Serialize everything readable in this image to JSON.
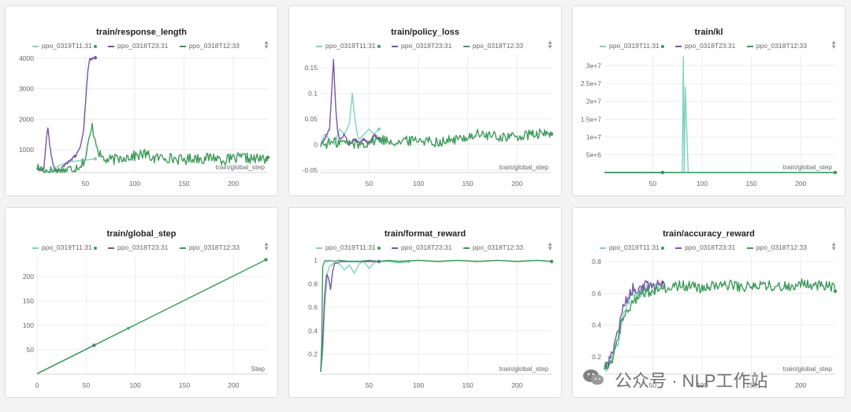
{
  "colors": {
    "run1": "#7fd3bd",
    "run2": "#7a55a6",
    "run3": "#3e9a5a"
  },
  "legend": [
    {
      "name": "ppo_0319T11:31",
      "color": "#7fd3bd"
    },
    {
      "name": "ppo_0318T23:31",
      "color": "#7a55a6"
    },
    {
      "name": "ppo_0318T12:33",
      "color": "#3e9a5a"
    }
  ],
  "sort_icon": "sort-arrows-icon",
  "watermark": {
    "icon": "wechat-icon",
    "text": "公众号 · NLP工作站"
  },
  "chart_data": [
    {
      "type": "line",
      "title": "train/response_length",
      "xlabel": "train/global_step",
      "xlim": [
        1,
        235
      ],
      "ylim": [
        250,
        4100
      ],
      "xticks": [
        50,
        100,
        150,
        200
      ],
      "yticks": [
        1000,
        2000,
        3000,
        4000
      ],
      "yticklabels": [
        "1000",
        "2000",
        "3000",
        "4000"
      ],
      "series": [
        {
          "name": "ppo_0319T11:31",
          "style": "flat",
          "x": [
            1,
            5,
            10,
            15,
            20,
            25,
            30,
            35,
            40,
            45,
            50,
            55,
            60
          ],
          "y": [
            420,
            350,
            260,
            300,
            420,
            500,
            560,
            600,
            620,
            650,
            660,
            680,
            700
          ]
        },
        {
          "name": "ppo_0318T23:31",
          "style": "spiky",
          "x": [
            1,
            5,
            8,
            10,
            12,
            14,
            17,
            20,
            25,
            30,
            35,
            40,
            45,
            48,
            50,
            52,
            54,
            57,
            60
          ],
          "y": [
            380,
            330,
            360,
            1200,
            1750,
            1100,
            550,
            300,
            350,
            520,
            640,
            800,
            1100,
            1600,
            2500,
            3400,
            3950,
            4000,
            4030
          ]
        },
        {
          "name": "ppo_0318T12:33",
          "style": "noisy",
          "x": [
            1,
            10,
            20,
            30,
            40,
            45,
            50,
            55,
            57,
            60,
            65,
            70,
            80,
            90,
            100,
            110,
            120,
            130,
            140,
            150,
            160,
            170,
            180,
            190,
            200,
            210,
            220,
            230,
            235
          ],
          "y": [
            420,
            320,
            300,
            330,
            420,
            500,
            700,
            1500,
            1750,
            1350,
            800,
            650,
            680,
            760,
            790,
            860,
            710,
            760,
            700,
            660,
            740,
            700,
            760,
            660,
            700,
            740,
            690,
            700,
            710
          ]
        }
      ]
    },
    {
      "type": "line",
      "title": "train/policy_loss",
      "xlabel": "train/global_step",
      "xlim": [
        1,
        235
      ],
      "ylim": [
        -0.055,
        0.175
      ],
      "xticks": [
        50,
        100,
        150,
        200
      ],
      "yticks": [
        -0.05,
        0,
        0.05,
        0.1,
        0.15
      ],
      "yticklabels": [
        "-0.05",
        "0",
        "0.05",
        "0.1",
        "0.15"
      ],
      "series": [
        {
          "name": "ppo_0319T11:31",
          "style": "flat",
          "x": [
            1,
            5,
            10,
            15,
            20,
            25,
            30,
            33,
            35,
            38,
            40,
            45,
            50,
            55,
            60
          ],
          "y": [
            0.0,
            0.02,
            0.01,
            0.0,
            0.03,
            0.02,
            0.04,
            0.1,
            0.06,
            0.02,
            0.01,
            0.02,
            0.03,
            0.02,
            0.03
          ]
        },
        {
          "name": "ppo_0318T23:31",
          "style": "spiky",
          "x": [
            1,
            5,
            10,
            12,
            14,
            16,
            18,
            20,
            25,
            30,
            35,
            40,
            45,
            50,
            55,
            60
          ],
          "y": [
            0.0,
            0.01,
            0.03,
            0.1,
            0.165,
            0.08,
            0.03,
            0.01,
            0.02,
            0.0,
            0.01,
            0.005,
            0.01,
            0.0,
            0.02,
            0.01
          ]
        },
        {
          "name": "ppo_0318T12:33",
          "style": "noisy",
          "x": [
            1,
            20,
            40,
            60,
            80,
            100,
            120,
            140,
            160,
            180,
            200,
            220,
            235
          ],
          "y": [
            0.0,
            0.005,
            0.0,
            0.01,
            0.005,
            0.01,
            0.005,
            0.01,
            0.02,
            0.015,
            0.015,
            0.02,
            0.02
          ]
        }
      ]
    },
    {
      "type": "line",
      "title": "train/kl",
      "xlabel": "train/global_step",
      "xlim": [
        1,
        235
      ],
      "ylim": [
        0,
        33000000
      ],
      "xticks": [
        50,
        100,
        150,
        200
      ],
      "yticks": [
        5000000,
        10000000,
        15000000,
        20000000,
        25000000,
        30000000
      ],
      "yticklabels": [
        "5e+6",
        "1e+7",
        "1.5e+7",
        "2e+7",
        "2.5e+7",
        "3e+7"
      ],
      "series": [
        {
          "name": "ppo_0319T11:31",
          "style": "flat",
          "x": [
            1,
            76,
            80,
            81,
            82,
            83,
            86,
            235
          ],
          "y": [
            0,
            0,
            0,
            32500000,
            0,
            24000000,
            0,
            0
          ]
        },
        {
          "name": "ppo_0318T23:31",
          "style": "flat",
          "x": [
            1,
            60
          ],
          "y": [
            0,
            0
          ]
        },
        {
          "name": "ppo_0318T12:33",
          "style": "flat",
          "x": [
            1,
            235
          ],
          "y": [
            0,
            0
          ]
        }
      ]
    },
    {
      "type": "line",
      "title": "train/global_step",
      "xlabel": "Step",
      "xlim": [
        0,
        235
      ],
      "ylim": [
        0,
        240
      ],
      "xticks": [
        0,
        50,
        100,
        150,
        200
      ],
      "yticks": [
        50,
        100,
        150,
        200
      ],
      "yticklabels": [
        "50",
        "100",
        "150",
        "200"
      ],
      "series": [
        {
          "name": "ppo_0319T11:31",
          "style": "flat",
          "x": [
            0,
            93
          ],
          "y": [
            1,
            94
          ]
        },
        {
          "name": "ppo_0318T23:31",
          "style": "flat",
          "x": [
            0,
            58
          ],
          "y": [
            1,
            59
          ]
        },
        {
          "name": "ppo_0318T12:33",
          "style": "flat",
          "x": [
            0,
            233
          ],
          "y": [
            1,
            234
          ]
        }
      ]
    },
    {
      "type": "line",
      "title": "train/format_reward",
      "xlabel": "train/global_step",
      "xlim": [
        1,
        235
      ],
      "ylim": [
        0.03,
        1.03
      ],
      "xticks": [
        50,
        100,
        150,
        200
      ],
      "yticks": [
        0.2,
        0.4,
        0.6,
        0.8,
        1
      ],
      "yticklabels": [
        "0.2",
        "0.4",
        "0.6",
        "0.8",
        "1"
      ],
      "series": [
        {
          "name": "ppo_0319T11:31",
          "style": "flat",
          "x": [
            1,
            3,
            5,
            8,
            10,
            15,
            20,
            25,
            30,
            35,
            40,
            45,
            50,
            55,
            60,
            70,
            80,
            90
          ],
          "y": [
            0.05,
            0.2,
            0.6,
            0.9,
            0.95,
            0.98,
            0.97,
            0.92,
            0.96,
            0.89,
            0.97,
            0.99,
            0.93,
            0.98,
            0.99,
            0.99,
            0.98,
            0.99
          ]
        },
        {
          "name": "ppo_0318T23:31",
          "style": "flat",
          "x": [
            1,
            3,
            5,
            7,
            9,
            11,
            13,
            15,
            18,
            22,
            26,
            30,
            40,
            50,
            60
          ],
          "y": [
            0.05,
            0.3,
            0.7,
            0.88,
            0.85,
            0.75,
            0.9,
            0.97,
            0.98,
            0.99,
            0.99,
            0.99,
            0.99,
            0.99,
            0.99
          ]
        },
        {
          "name": "ppo_0318T12:33",
          "style": "flat",
          "x": [
            1,
            2,
            3,
            4,
            5,
            6,
            8,
            10,
            15,
            20,
            30,
            40,
            50,
            60,
            70,
            80,
            100,
            120,
            140,
            160,
            180,
            200,
            220,
            235
          ],
          "y": [
            0.05,
            0.3,
            0.95,
            0.97,
            0.99,
            1,
            0.99,
            1,
            0.99,
            1,
            0.99,
            0.99,
            1,
            0.99,
            1,
            0.99,
            1,
            0.99,
            1,
            0.99,
            1,
            0.99,
            1,
            0.99
          ]
        }
      ]
    },
    {
      "type": "line",
      "title": "train/accuracy_reward",
      "xlabel": "train/global_step",
      "xlim": [
        1,
        235
      ],
      "ylim": [
        0.09,
        0.83
      ],
      "xticks": [
        50,
        100,
        150,
        200
      ],
      "yticks": [
        0.2,
        0.4,
        0.6,
        0.8
      ],
      "yticklabels": [
        "0.2",
        "0.4",
        "0.6",
        "0.8"
      ],
      "series": [
        {
          "name": "ppo_0319T11:31",
          "style": "noisy",
          "x": [
            1,
            5,
            10,
            15,
            20,
            25,
            30,
            35,
            40,
            45,
            50,
            55,
            60
          ],
          "y": [
            0.15,
            0.13,
            0.2,
            0.3,
            0.45,
            0.55,
            0.6,
            0.58,
            0.62,
            0.64,
            0.66,
            0.62,
            0.65
          ]
        },
        {
          "name": "ppo_0318T23:31",
          "style": "noisy",
          "x": [
            1,
            5,
            10,
            15,
            20,
            25,
            30,
            35,
            40,
            45,
            50,
            55,
            60
          ],
          "y": [
            0.14,
            0.15,
            0.25,
            0.35,
            0.5,
            0.58,
            0.63,
            0.6,
            0.64,
            0.66,
            0.63,
            0.66,
            0.64
          ]
        },
        {
          "name": "ppo_0318T12:33",
          "style": "noisy",
          "x": [
            1,
            10,
            20,
            30,
            40,
            50,
            60,
            80,
            100,
            120,
            140,
            160,
            180,
            200,
            220,
            235
          ],
          "y": [
            0.13,
            0.2,
            0.45,
            0.55,
            0.6,
            0.62,
            0.63,
            0.65,
            0.63,
            0.66,
            0.64,
            0.65,
            0.64,
            0.66,
            0.65,
            0.64
          ]
        }
      ]
    }
  ]
}
